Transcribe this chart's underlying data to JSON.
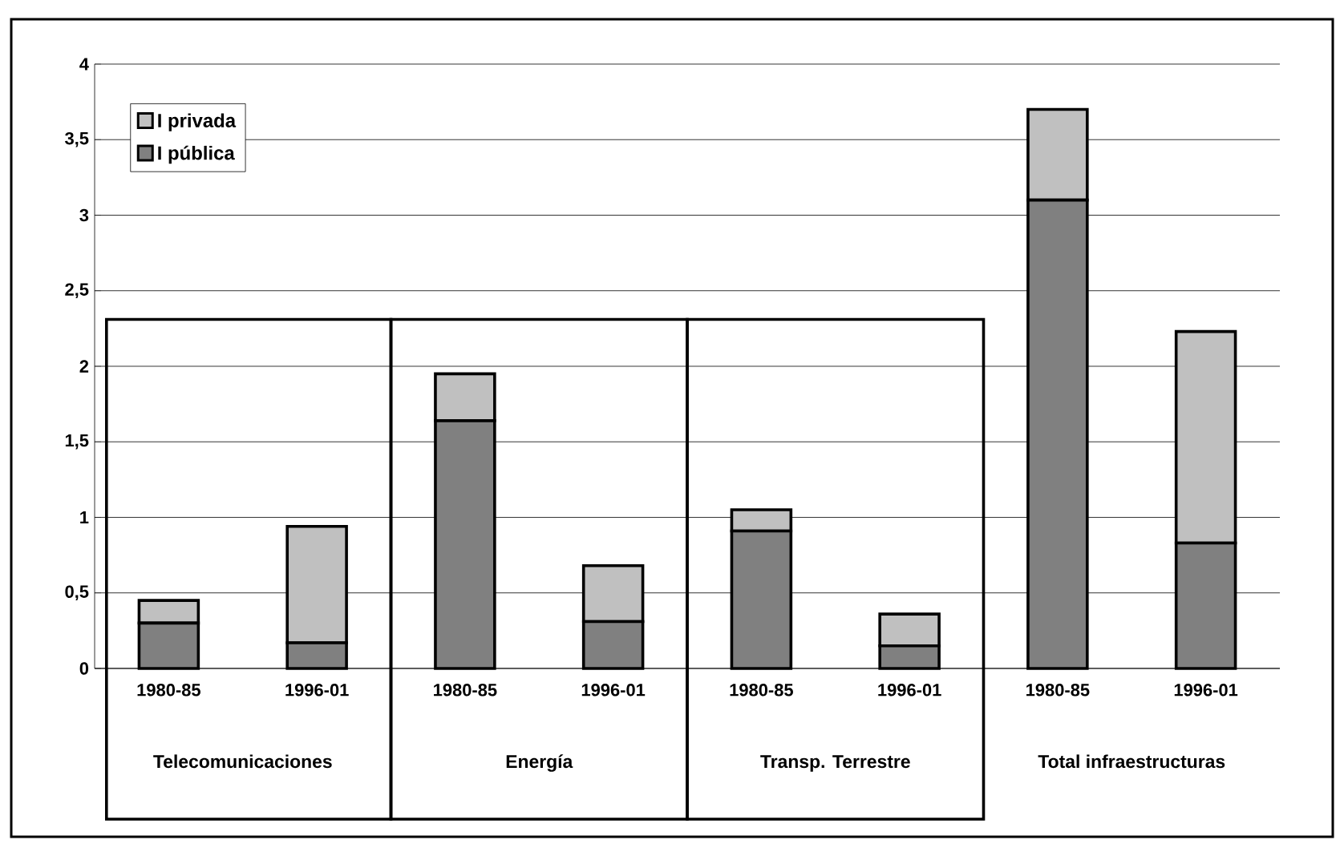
{
  "chart_data": {
    "type": "bar",
    "stacked": true,
    "categories": [
      "1980-85",
      "1996-01",
      "1980-85",
      "1996-01",
      "1980-85",
      "1996-01",
      "1980-85",
      "1996-01"
    ],
    "series": [
      {
        "name": "I pública",
        "color": "#808080",
        "values": [
          0.3,
          0.17,
          1.64,
          0.31,
          0.91,
          0.15,
          3.1,
          0.83
        ]
      },
      {
        "name": "I privada",
        "color": "#c0c0c0",
        "values": [
          0.15,
          0.77,
          0.31,
          0.37,
          0.14,
          0.21,
          0.6,
          1.4
        ]
      }
    ],
    "annotations": [
      "Telecomunicaciones",
      "Energía",
      "Transp. Terrestre",
      "Total infraestructuras"
    ],
    "ylim": [
      0,
      4
    ],
    "yticks": [
      0,
      {
        "value": 0.5,
        "label": "0,5"
      },
      1,
      {
        "value": 1.5,
        "label": "1,5"
      },
      2,
      {
        "value": 2.5,
        "label": "2,5"
      },
      3,
      {
        "value": 3.5,
        "label": "3,5"
      },
      4
    ],
    "grid": "y",
    "legend": "top left"
  }
}
